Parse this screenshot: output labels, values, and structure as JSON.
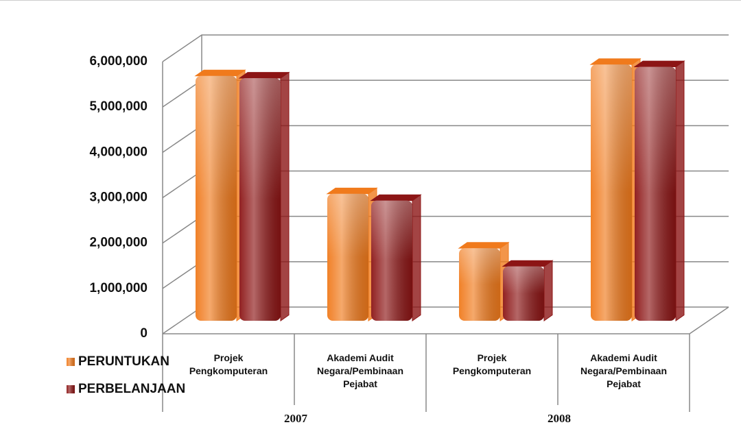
{
  "chart_data": {
    "type": "bar3d",
    "categories": [
      "Projek Pengkomputeran",
      "Akademi Audit Negara/Pembinaan Pejabat",
      "Projek Pengkomputeran",
      "Akademi Audit Negara/Pembinaan Pejabat"
    ],
    "groups": [
      "2007",
      "2008"
    ],
    "series": [
      {
        "name": "PERUNTUKAN",
        "color": "#f07a1c",
        "values": [
          5400000,
          2800000,
          1600000,
          5650000
        ]
      },
      {
        "name": "PERBELANJAAN",
        "color": "#8c1515",
        "values": [
          5350000,
          2650000,
          1200000,
          5600000
        ]
      }
    ],
    "ylim": [
      0,
      6000000
    ],
    "yticks": [
      0,
      {
        "value": 1000000,
        "label": "1,000,000"
      },
      {
        "value": 2000000,
        "label": "2,000,000"
      },
      {
        "value": 3000000,
        "label": "3,000,000"
      },
      {
        "value": 4000000,
        "label": "4,000,000"
      },
      {
        "value": 5000000,
        "label": "5,000,000"
      },
      {
        "value": 6000000,
        "label": "6,000,000"
      }
    ],
    "grid": true,
    "legend": "bottom-left"
  }
}
